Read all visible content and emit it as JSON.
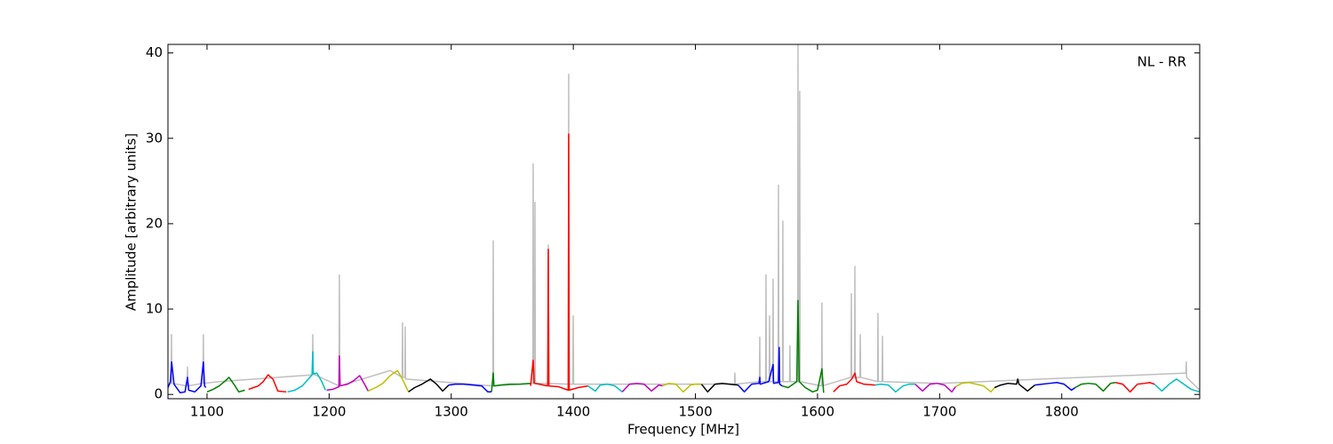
{
  "chart_data": {
    "type": "line",
    "annotation": "NL - RR",
    "xlabel": "Frequency [MHz]",
    "ylabel": "Amplitude [arbitrary units]",
    "xlim": [
      1068,
      1913
    ],
    "ylim": [
      -0.5,
      41
    ],
    "xticks": [
      1100,
      1200,
      1300,
      1400,
      1500,
      1600,
      1700,
      1800
    ],
    "yticks": [
      0,
      10,
      20,
      30,
      40
    ],
    "series": [
      {
        "color": "#bfbfbf",
        "x": [
          1068,
          1070.6,
          1070.9,
          1071.2,
          1083.7,
          1084,
          1084.3,
          1096.7,
          1097,
          1097.3,
          1110,
          1186.3,
          1186.6,
          1186.9,
          1208.1,
          1208.4,
          1208.7,
          1250,
          1259.8,
          1260.1,
          1260.4,
          1262.1,
          1262.3,
          1262.6,
          1334.1,
          1334.4,
          1334.7,
          1366.8,
          1367.1,
          1367.6,
          1368.3,
          1368.6,
          1368.9,
          1379.2,
          1379.5,
          1379.8,
          1395.9,
          1396.2,
          1396.5,
          1399.6,
          1399.9,
          1400.2,
          1532,
          1532.3,
          1532.6,
          1552.4,
          1552.7,
          1553,
          1557.5,
          1557.8,
          1558.1,
          1560.4,
          1560.7,
          1561,
          1563.3,
          1563.6,
          1563.9,
          1567.7,
          1568,
          1568.3,
          1571.3,
          1571.6,
          1571.9,
          1577.1,
          1577.4,
          1577.7,
          1583.7,
          1584,
          1584.3,
          1585.1,
          1585.4,
          1585.7,
          1603.3,
          1603.6,
          1603.9,
          1627.4,
          1627.7,
          1628,
          1630.3,
          1630.6,
          1630.9,
          1634.7,
          1635,
          1635.3,
          1649.2,
          1649.5,
          1649.8,
          1652.9,
          1653.2,
          1653.5,
          1700,
          1901.7,
          1902,
          1902.3,
          1913
        ],
        "values": [
          1,
          1.3,
          7,
          1.3,
          1,
          3.2,
          1,
          1.3,
          7,
          1.3,
          1.5,
          2.3,
          7,
          2.4,
          1,
          14,
          1,
          2.8,
          2,
          8.4,
          2,
          2,
          7.9,
          1.8,
          1,
          18,
          1,
          1.3,
          27,
          1.3,
          1.3,
          22.5,
          1.3,
          1.3,
          17.5,
          1.3,
          1.2,
          37.5,
          1.2,
          1.2,
          9.2,
          1.2,
          1.2,
          2.5,
          1.2,
          1.5,
          6.7,
          1.5,
          1.5,
          14,
          1.5,
          1.5,
          9.2,
          1.5,
          1.5,
          13.5,
          1.5,
          1.5,
          24.5,
          1.5,
          1.5,
          20.3,
          1.5,
          1.5,
          5.7,
          1.5,
          1.5,
          41,
          1.5,
          1.5,
          35.5,
          1.5,
          1,
          10.7,
          1,
          2,
          11.8,
          2,
          2,
          15,
          2,
          2,
          7,
          2,
          1.5,
          9.5,
          1.5,
          1.5,
          6.8,
          1.5,
          1.3,
          2.5,
          3.8,
          2,
          0.5
        ]
      },
      {
        "color": "#0000ff",
        "x": [
          1068,
          1070,
          1071,
          1073,
          1078,
          1082,
          1084,
          1085,
          1090,
          1095,
          1097,
          1098,
          1099
        ],
        "values": [
          0.8,
          1.5,
          3.8,
          1.2,
          0.2,
          0.3,
          2,
          0.5,
          0.3,
          1,
          3.8,
          1,
          0.8
        ]
      },
      {
        "color": "#008000",
        "x": [
          1100,
          1105,
          1110,
          1115,
          1118,
          1122,
          1126,
          1131
        ],
        "values": [
          0.3,
          0.6,
          1,
          1.6,
          2,
          1.2,
          0.3,
          0.5
        ]
      },
      {
        "color": "#ff0000",
        "x": [
          1134,
          1138,
          1142,
          1146,
          1150,
          1154,
          1158,
          1165
        ],
        "values": [
          0.6,
          0.8,
          1,
          1.5,
          2.3,
          1.8,
          0.4,
          0.3
        ]
      },
      {
        "color": "#00bfbf",
        "x": [
          1166,
          1172,
          1178,
          1183,
          1186,
          1186.6,
          1187,
          1190,
          1194,
          1197
        ],
        "values": [
          0.3,
          0.5,
          1,
          1.8,
          2.3,
          5,
          2.4,
          2.5,
          1.5,
          0.5
        ]
      },
      {
        "color": "#bf00bf",
        "x": [
          1198,
          1203,
          1208,
          1208.4,
          1209,
          1215,
          1220,
          1225,
          1229,
          1232
        ],
        "values": [
          0.5,
          0.6,
          0.9,
          4.5,
          1,
          1.2,
          1.6,
          2.2,
          1.2,
          0.4
        ]
      },
      {
        "color": "#bfbf00",
        "x": [
          1232,
          1238,
          1244,
          1250,
          1256,
          1260,
          1265
        ],
        "values": [
          0.4,
          0.8,
          1.3,
          2.2,
          2.8,
          1.8,
          0.3
        ]
      },
      {
        "color": "#000000",
        "x": [
          1265,
          1270,
          1276,
          1283,
          1288,
          1293,
          1298
        ],
        "values": [
          0.3,
          0.8,
          1.2,
          1.8,
          1.2,
          0.4,
          1.1
        ]
      },
      {
        "color": "#0000ff",
        "x": [
          1298,
          1303,
          1310,
          1318,
          1325,
          1330,
          1333
        ],
        "values": [
          1.1,
          1.2,
          1.2,
          1.1,
          1,
          0.3,
          0.3
        ]
      },
      {
        "color": "#008000",
        "x": [
          1333,
          1334.4,
          1335,
          1340,
          1348,
          1356,
          1365
        ],
        "values": [
          0.3,
          2.5,
          1,
          1.1,
          1.2,
          1.2,
          1.3
        ]
      },
      {
        "color": "#ff0000",
        "x": [
          1365,
          1367.1,
          1368,
          1372,
          1379,
          1379.5,
          1380,
          1388,
          1395.8,
          1396.2,
          1396.6,
          1404,
          1412
        ],
        "values": [
          1,
          4,
          1.3,
          1.2,
          1,
          17,
          1,
          0.9,
          0.5,
          30.5,
          0.5,
          0.8,
          1
        ]
      },
      {
        "color": "#00bfbf",
        "x": [
          1412,
          1418,
          1422,
          1428,
          1434,
          1440
        ],
        "values": [
          1,
          0.4,
          1.1,
          1.2,
          1,
          0.3
        ]
      },
      {
        "color": "#bf00bf",
        "x": [
          1440,
          1446,
          1452,
          1458,
          1464,
          1470,
          1473
        ],
        "values": [
          0.3,
          1.2,
          1.3,
          1.2,
          0.4,
          1.1,
          1
        ]
      },
      {
        "color": "#bfbf00",
        "x": [
          1473,
          1478,
          1484,
          1490,
          1496,
          1500,
          1505
        ],
        "values": [
          1,
          1.3,
          1.2,
          0.3,
          1.1,
          1.2,
          1.2
        ]
      },
      {
        "color": "#000000",
        "x": [
          1505,
          1510,
          1516,
          1522,
          1528,
          1535
        ],
        "values": [
          1.2,
          0.3,
          1.2,
          1.3,
          1.2,
          1.1
        ]
      },
      {
        "color": "#0000ff",
        "x": [
          1535,
          1540,
          1546,
          1552,
          1552.7,
          1553,
          1560,
          1563.6,
          1564,
          1568,
          1568.6,
          1569,
          1571
        ],
        "values": [
          1.1,
          0.3,
          1.2,
          1.3,
          2,
          1.2,
          1.5,
          3.5,
          1.3,
          1.4,
          5.5,
          1.2,
          1
        ]
      },
      {
        "color": "#008000",
        "x": [
          1571,
          1576,
          1583,
          1584,
          1585,
          1590,
          1596,
          1600,
          1603.6,
          1605
        ],
        "values": [
          1,
          0.8,
          1.5,
          11,
          1.5,
          0.8,
          0.3,
          0.5,
          3,
          0.2
        ]
      },
      {
        "color": "#ff0000",
        "x": [
          1613,
          1618,
          1624,
          1628,
          1630.6,
          1632,
          1638,
          1647
        ],
        "values": [
          0.3,
          1,
          1.2,
          1.8,
          2.5,
          1.5,
          1.2,
          1.1
        ]
      },
      {
        "color": "#00bfbf",
        "x": [
          1647,
          1652,
          1658,
          1664,
          1670,
          1675,
          1680
        ],
        "values": [
          1.1,
          1.2,
          1.1,
          0.3,
          1,
          1.2,
          1.2
        ]
      },
      {
        "color": "#bf00bf",
        "x": [
          1680,
          1686,
          1692,
          1698,
          1704,
          1710,
          1713
        ],
        "values": [
          1.2,
          0.4,
          1.2,
          1.3,
          1.1,
          0.3,
          0.9
        ]
      },
      {
        "color": "#bfbf00",
        "x": [
          1713,
          1718,
          1724,
          1730,
          1736,
          1742,
          1745
        ],
        "values": [
          0.9,
          1.3,
          1.4,
          1.2,
          1,
          0.3,
          0.8
        ]
      },
      {
        "color": "#000000",
        "x": [
          1745,
          1750,
          1756,
          1763,
          1764,
          1765,
          1772,
          1778
        ],
        "values": [
          0.8,
          1.1,
          1.3,
          1.2,
          1.8,
          1.2,
          0.4,
          1.1
        ]
      },
      {
        "color": "#0000ff",
        "x": [
          1778,
          1784,
          1790,
          1796,
          1802,
          1808,
          1811
        ],
        "values": [
          1.1,
          1.2,
          1.3,
          1.4,
          1.2,
          0.5,
          0.8
        ]
      },
      {
        "color": "#008000",
        "x": [
          1811,
          1816,
          1822,
          1828,
          1834,
          1840,
          1844
        ],
        "values": [
          0.8,
          1.2,
          1.3,
          1.2,
          0.4,
          1.3,
          1.4
        ]
      },
      {
        "color": "#ff0000",
        "x": [
          1844,
          1850,
          1856,
          1862,
          1868,
          1872,
          1876
        ],
        "values": [
          1.4,
          1.2,
          0.3,
          1.2,
          1.3,
          1.4,
          1.2
        ]
      },
      {
        "color": "#00bfbf",
        "x": [
          1876,
          1882,
          1888,
          1894,
          1900,
          1906,
          1913
        ],
        "values": [
          1.2,
          0.4,
          1.2,
          1.8,
          1.2,
          0.6,
          0.3
        ]
      }
    ]
  }
}
